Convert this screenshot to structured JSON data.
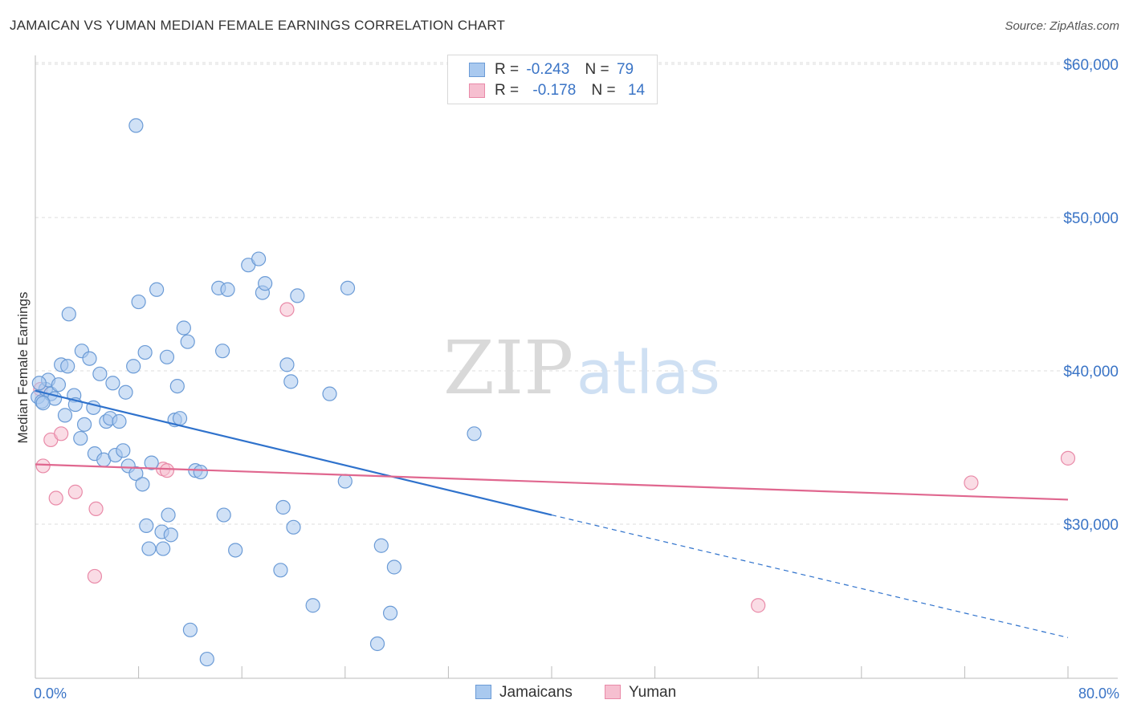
{
  "title": "JAMAICAN VS YUMAN MEDIAN FEMALE EARNINGS CORRELATION CHART",
  "source": "Source: ZipAtlas.com",
  "watermark": {
    "zip": "ZIP",
    "atlas": "atlas"
  },
  "colors": {
    "blue_fill": "#a9c9ef",
    "blue_stroke": "#6b9bd6",
    "blue_line": "#2f72cc",
    "pink_fill": "#f6bfd0",
    "pink_stroke": "#e98aa8",
    "pink_line": "#e0678f",
    "axis_label": "#3a74c6",
    "grid": "#dddddd"
  },
  "legend": {
    "rows": [
      {
        "r_label": "R =",
        "r_value": "-0.243",
        "n_label": "N =",
        "n_value": "79",
        "series": "blue"
      },
      {
        "r_label": "R =",
        "r_value": "-0.178",
        "n_label": "N =",
        "n_value": "14",
        "series": "pink"
      }
    ]
  },
  "bottom_legend": [
    {
      "label": "Jamaicans",
      "series": "blue"
    },
    {
      "label": "Yuman",
      "series": "pink"
    }
  ],
  "chart_data": {
    "type": "scatter",
    "title": "JAMAICAN VS YUMAN MEDIAN FEMALE EARNINGS CORRELATION CHART",
    "xlabel": "",
    "ylabel": "Median Female Earnings",
    "xlim": [
      0,
      80
    ],
    "ylim": [
      20500,
      61000
    ],
    "x_tick_labels": [
      "0.0%",
      "80.0%"
    ],
    "y_ticks": [
      30000,
      40000,
      50000,
      60000
    ],
    "y_tick_labels": [
      "$30,000",
      "$40,000",
      "$50,000",
      "$60,000"
    ],
    "grid": true,
    "series": [
      {
        "name": "Jamaicans",
        "color": "blue",
        "r": -0.243,
        "n": 79,
        "trend": {
          "x0": 0,
          "y0": 38700,
          "x1": 40,
          "y1": 30600,
          "dashed_to_x": 80,
          "dashed_to_y": 22600
        },
        "points": [
          [
            0.2,
            38300
          ],
          [
            0.5,
            38000
          ],
          [
            0.8,
            38800
          ],
          [
            1.0,
            39400
          ],
          [
            1.2,
            38500
          ],
          [
            1.5,
            38200
          ],
          [
            1.8,
            39100
          ],
          [
            2.0,
            40400
          ],
          [
            2.3,
            37100
          ],
          [
            2.5,
            40300
          ],
          [
            2.6,
            43700
          ],
          [
            3.0,
            38400
          ],
          [
            3.1,
            37800
          ],
          [
            3.5,
            35600
          ],
          [
            3.6,
            41300
          ],
          [
            3.8,
            36500
          ],
          [
            4.2,
            40800
          ],
          [
            4.5,
            37600
          ],
          [
            4.6,
            34600
          ],
          [
            5.0,
            39800
          ],
          [
            5.3,
            34200
          ],
          [
            5.5,
            36700
          ],
          [
            5.8,
            36900
          ],
          [
            6.0,
            39200
          ],
          [
            6.2,
            34500
          ],
          [
            6.5,
            36700
          ],
          [
            6.8,
            34800
          ],
          [
            7.0,
            38600
          ],
          [
            7.2,
            33800
          ],
          [
            7.6,
            40300
          ],
          [
            7.8,
            33300
          ],
          [
            7.8,
            56000
          ],
          [
            8.0,
            44500
          ],
          [
            8.3,
            32600
          ],
          [
            8.5,
            41200
          ],
          [
            8.6,
            29900
          ],
          [
            8.8,
            28400
          ],
          [
            9.0,
            34000
          ],
          [
            9.4,
            45300
          ],
          [
            9.8,
            29500
          ],
          [
            9.9,
            28400
          ],
          [
            10.2,
            40900
          ],
          [
            10.3,
            30600
          ],
          [
            10.5,
            29300
          ],
          [
            10.8,
            36800
          ],
          [
            11.0,
            39000
          ],
          [
            11.2,
            36900
          ],
          [
            11.5,
            42800
          ],
          [
            11.8,
            41900
          ],
          [
            12.0,
            23100
          ],
          [
            12.4,
            33500
          ],
          [
            12.8,
            33400
          ],
          [
            13.3,
            21200
          ],
          [
            14.2,
            45400
          ],
          [
            14.5,
            41300
          ],
          [
            14.6,
            30600
          ],
          [
            14.9,
            45300
          ],
          [
            15.5,
            28300
          ],
          [
            16.5,
            46900
          ],
          [
            17.3,
            47300
          ],
          [
            17.6,
            45100
          ],
          [
            17.8,
            45700
          ],
          [
            19.0,
            27000
          ],
          [
            19.2,
            31100
          ],
          [
            19.5,
            40400
          ],
          [
            19.8,
            39300
          ],
          [
            20.0,
            29800
          ],
          [
            20.3,
            44900
          ],
          [
            21.5,
            24700
          ],
          [
            22.8,
            38500
          ],
          [
            24.0,
            32800
          ],
          [
            24.2,
            45400
          ],
          [
            26.5,
            22200
          ],
          [
            26.8,
            28600
          ],
          [
            27.5,
            24200
          ],
          [
            27.8,
            27200
          ],
          [
            34.0,
            35900
          ],
          [
            0.3,
            39200
          ],
          [
            0.6,
            37900
          ]
        ]
      },
      {
        "name": "Yuman",
        "color": "pink",
        "r": -0.178,
        "n": 14,
        "trend": {
          "x0": 0,
          "y0": 33900,
          "x1": 80,
          "y1": 31600
        },
        "points": [
          [
            0.4,
            38800
          ],
          [
            0.6,
            33800
          ],
          [
            1.2,
            35500
          ],
          [
            1.6,
            31700
          ],
          [
            2.0,
            35900
          ],
          [
            3.1,
            32100
          ],
          [
            4.6,
            26600
          ],
          [
            4.7,
            31000
          ],
          [
            9.9,
            33600
          ],
          [
            10.2,
            33500
          ],
          [
            19.5,
            44000
          ],
          [
            56.0,
            24700
          ],
          [
            72.5,
            32700
          ],
          [
            80.0,
            34300
          ]
        ]
      }
    ]
  }
}
